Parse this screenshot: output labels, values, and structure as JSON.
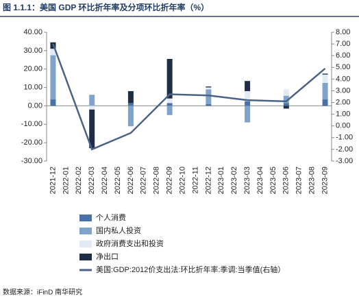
{
  "chart_data": {
    "type": "bar_line",
    "title": "图 1.1.1：美国 GDP 环比折年率及分项环比折年率（%）",
    "source": "数据来源：iFinD 南华研究",
    "categories": [
      "2021-12",
      "2022-01",
      "2022-02",
      "2022-03",
      "2022-04",
      "2022-05",
      "2022-06",
      "2022-07",
      "2022-08",
      "2022-09",
      "2022-10",
      "2022-11",
      "2022-12",
      "2023-01",
      "2023-02",
      "2023-03",
      "2023-04",
      "2023-05",
      "2023-06",
      "2023-07",
      "2023-08",
      "2023-09"
    ],
    "ylim": [
      -30,
      40
    ],
    "yticks": [
      {
        "value": 40,
        "label": "40.00"
      },
      {
        "value": 30,
        "label": "30.00"
      },
      {
        "value": 20,
        "label": "20.00"
      },
      {
        "value": 10,
        "label": "10.00"
      },
      {
        "value": 0,
        "label": "0.00"
      },
      {
        "value": -10,
        "label": "-10.00"
      },
      {
        "value": -20,
        "label": "-20.00"
      },
      {
        "value": -30,
        "label": "-30.00"
      }
    ],
    "y2lim": [
      -3,
      8
    ],
    "y2ticks": [
      {
        "value": 8,
        "label": "8.00"
      },
      {
        "value": 7,
        "label": "7.00"
      },
      {
        "value": 6,
        "label": "6.00"
      },
      {
        "value": 5,
        "label": "5.00"
      },
      {
        "value": 4,
        "label": "4.00"
      },
      {
        "value": 3,
        "label": "3.00"
      },
      {
        "value": 2,
        "label": "2.00"
      },
      {
        "value": 1,
        "label": "1.00"
      },
      {
        "value": 0,
        "label": "0.00"
      },
      {
        "value": -1,
        "label": "-1.00"
      },
      {
        "value": -2,
        "label": "-2.00"
      },
      {
        "value": -3,
        "label": "-3.00"
      }
    ],
    "series": [
      {
        "name": "个人消费",
        "color": "#4a72a8",
        "type": "bar",
        "values": [
          3.5,
          null,
          null,
          0,
          null,
          null,
          1.5,
          null,
          null,
          1.5,
          null,
          null,
          1,
          null,
          null,
          2.5,
          null,
          null,
          1.5,
          null,
          null,
          3.5
        ]
      },
      {
        "name": "国内私人投资",
        "color": "#7fa3c9",
        "type": "bar",
        "values": [
          24,
          null,
          null,
          6,
          null,
          null,
          -11,
          null,
          null,
          -5,
          null,
          null,
          8,
          null,
          null,
          -9,
          null,
          null,
          4,
          null,
          null,
          9
        ]
      },
      {
        "name": "政府消费支出和投资",
        "color": "#e1eaf5",
        "type": "bar",
        "values": [
          3.5,
          null,
          null,
          -2,
          null,
          null,
          -0.5,
          null,
          null,
          2.5,
          null,
          null,
          1,
          null,
          null,
          5.5,
          null,
          null,
          3.5,
          null,
          null,
          4.5
        ]
      },
      {
        "name": "净出口",
        "color": "#1f2d45",
        "type": "bar",
        "values": [
          3.5,
          null,
          null,
          -21,
          null,
          null,
          6.5,
          null,
          null,
          21.5,
          null,
          null,
          0.5,
          null,
          null,
          5.5,
          null,
          null,
          -1.5,
          null,
          null,
          0.5
        ]
      },
      {
        "name": "美国:GDP:2012价支出法:环比折年率:季调:当季值(右轴）",
        "color": "#4a6285",
        "type": "line",
        "axis": "y2",
        "x": [
          "2021-12",
          "2022-03",
          "2022-06",
          "2022-09",
          "2022-12",
          "2023-03",
          "2023-06",
          "2023-09"
        ],
        "values": [
          7.0,
          -2.0,
          -0.6,
          2.7,
          2.6,
          2.2,
          2.1,
          4.9
        ]
      }
    ]
  }
}
